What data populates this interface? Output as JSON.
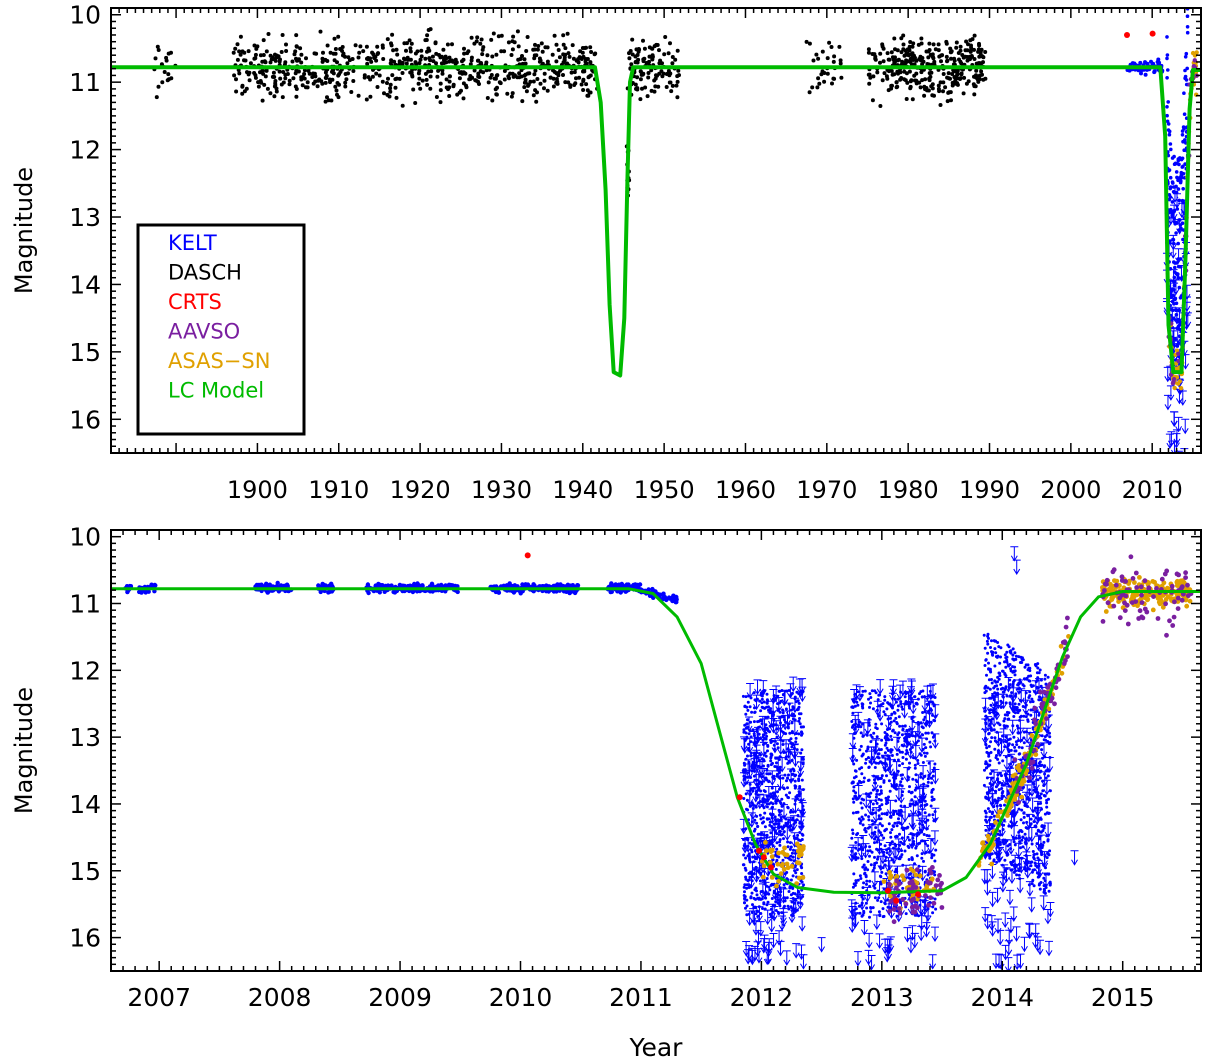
{
  "chart_data": [
    {
      "type": "scatter",
      "ylabel": "Magnitude",
      "xlabel": "",
      "xlim": [
        1882,
        2016
      ],
      "ylim": [
        16.5,
        9.9
      ],
      "x_ticks": [
        1900,
        1910,
        1920,
        1930,
        1940,
        1950,
        1960,
        1970,
        1980,
        1990,
        2000,
        2010
      ],
      "y_ticks": [
        10,
        11,
        12,
        13,
        14,
        15,
        16
      ],
      "legend": {
        "placement": "bottom-left",
        "entries": [
          {
            "label": "KELT",
            "color": "#0000ff"
          },
          {
            "label": "DASCH",
            "color": "#000000"
          },
          {
            "label": "CRTS",
            "color": "#ff0000"
          },
          {
            "label": "AAVSO",
            "color": "#7a1fa0"
          },
          {
            "label": "ASAS−SN",
            "color": "#e0a000"
          },
          {
            "label": "LC Model",
            "color": "#00bb00"
          }
        ]
      },
      "series": [
        {
          "name": "LC Model",
          "color": "#00bb00",
          "points": [
            [
              1882,
              10.78
            ],
            [
              1941.5,
              10.78
            ],
            [
              1942.2,
              11.3
            ],
            [
              1942.8,
              12.6
            ],
            [
              1943.3,
              14.3
            ],
            [
              1943.8,
              15.3
            ],
            [
              1944.6,
              15.35
            ],
            [
              1945.1,
              14.5
            ],
            [
              1945.5,
              12.4
            ],
            [
              1945.8,
              11.0
            ],
            [
              1946.2,
              10.78
            ],
            [
              2011.0,
              10.78
            ],
            [
              2011.6,
              11.8
            ],
            [
              2012.0,
              14.6
            ],
            [
              2012.6,
              15.3
            ],
            [
              2013.6,
              15.3
            ],
            [
              2014.1,
              13.6
            ],
            [
              2014.6,
              11.4
            ],
            [
              2015.0,
              10.82
            ],
            [
              2016,
              10.82
            ]
          ]
        },
        {
          "name": "CRTS",
          "color": "#ff0000",
          "points": [
            [
              2006.9,
              10.3
            ],
            [
              2010.05,
              10.28
            ]
          ]
        }
      ]
    },
    {
      "type": "scatter",
      "xlabel": "Year",
      "ylabel": "Magnitude",
      "xlim": [
        2006.6,
        2015.65
      ],
      "ylim": [
        16.5,
        9.9
      ],
      "x_ticks": [
        2007,
        2008,
        2009,
        2010,
        2011,
        2012,
        2013,
        2014,
        2015
      ],
      "y_ticks": [
        10,
        11,
        12,
        13,
        14,
        15,
        16
      ],
      "series": [
        {
          "name": "LC Model",
          "color": "#00bb00",
          "points": [
            [
              2006.6,
              10.78
            ],
            [
              2010.9,
              10.78
            ],
            [
              2011.1,
              10.85
            ],
            [
              2011.3,
              11.2
            ],
            [
              2011.5,
              11.9
            ],
            [
              2011.65,
              12.9
            ],
            [
              2011.8,
              13.9
            ],
            [
              2011.95,
              14.6
            ],
            [
              2012.1,
              15.05
            ],
            [
              2012.3,
              15.25
            ],
            [
              2012.6,
              15.32
            ],
            [
              2013.0,
              15.33
            ],
            [
              2013.5,
              15.3
            ],
            [
              2013.7,
              15.1
            ],
            [
              2013.9,
              14.6
            ],
            [
              2014.05,
              14.0
            ],
            [
              2014.2,
              13.4
            ],
            [
              2014.35,
              12.6
            ],
            [
              2014.5,
              11.8
            ],
            [
              2014.65,
              11.2
            ],
            [
              2014.8,
              10.9
            ],
            [
              2015.0,
              10.82
            ],
            [
              2015.65,
              10.82
            ]
          ]
        },
        {
          "name": "CRTS",
          "color": "#ff0000",
          "points": [
            [
              2010.06,
              10.28
            ],
            [
              2011.82,
              13.9
            ],
            [
              2011.98,
              14.7
            ],
            [
              2012.02,
              14.8
            ],
            [
              2012.08,
              14.95
            ],
            [
              2013.05,
              15.3
            ],
            [
              2013.12,
              15.45
            ],
            [
              2013.3,
              15.35
            ]
          ]
        }
      ]
    }
  ]
}
